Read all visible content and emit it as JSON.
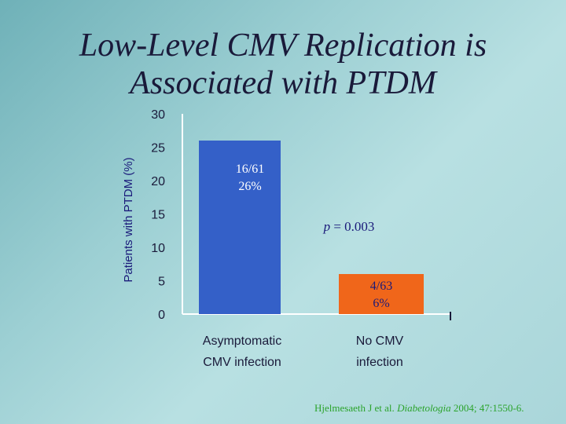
{
  "title": {
    "line1": "Low-Level CMV Replication is",
    "line2": "Associated with PTDM"
  },
  "chart_data": {
    "type": "bar",
    "ylabel": "Patients with PTDM (%)",
    "ylim": [
      0,
      30
    ],
    "yticks": [
      0,
      5,
      10,
      15,
      20,
      25,
      30
    ],
    "categories": [
      [
        "Asymptomatic",
        "CMV infection"
      ],
      [
        "No CMV",
        "infection"
      ]
    ],
    "values": [
      26,
      6
    ],
    "data_labels": [
      [
        "16/61",
        "26%"
      ],
      [
        "4/63",
        "6%"
      ]
    ],
    "colors": [
      "#3460c8",
      "#f0661a"
    ],
    "annotation": "p = 0.003",
    "grid": false
  },
  "citation": {
    "authors": "Hjelmesaeth J et al. ",
    "journal": "Diabetologia",
    "rest": " 2004; 47:1550-6."
  }
}
